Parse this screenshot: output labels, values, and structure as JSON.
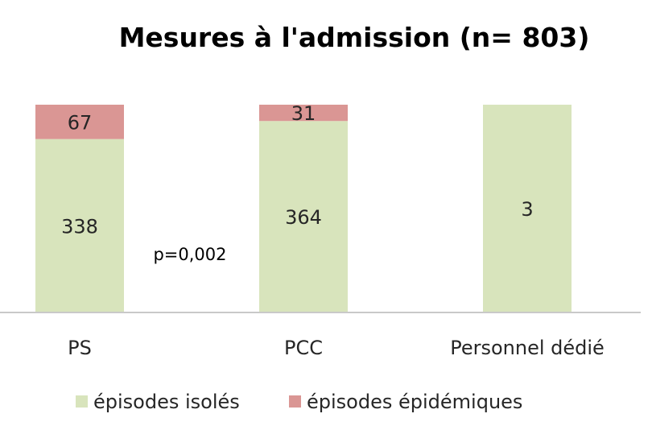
{
  "chart_data": {
    "type": "bar",
    "stacked": true,
    "title": "Mesures à l'admission (n= 803)",
    "categories": [
      "PS",
      "PCC",
      "Personnel dédié"
    ],
    "series": [
      {
        "name": "épisodes isolés",
        "values": [
          338,
          364,
          3
        ],
        "color": "#d8e4bc"
      },
      {
        "name": "épisodes épidémiques",
        "values": [
          67,
          31,
          0
        ],
        "color": "#da9694"
      }
    ],
    "normalized_to_100_percent": true,
    "annotations": [
      {
        "text": "p=0,002"
      }
    ],
    "legend_position": "bottom",
    "grid": false,
    "xlabel": "",
    "ylabel": ""
  }
}
